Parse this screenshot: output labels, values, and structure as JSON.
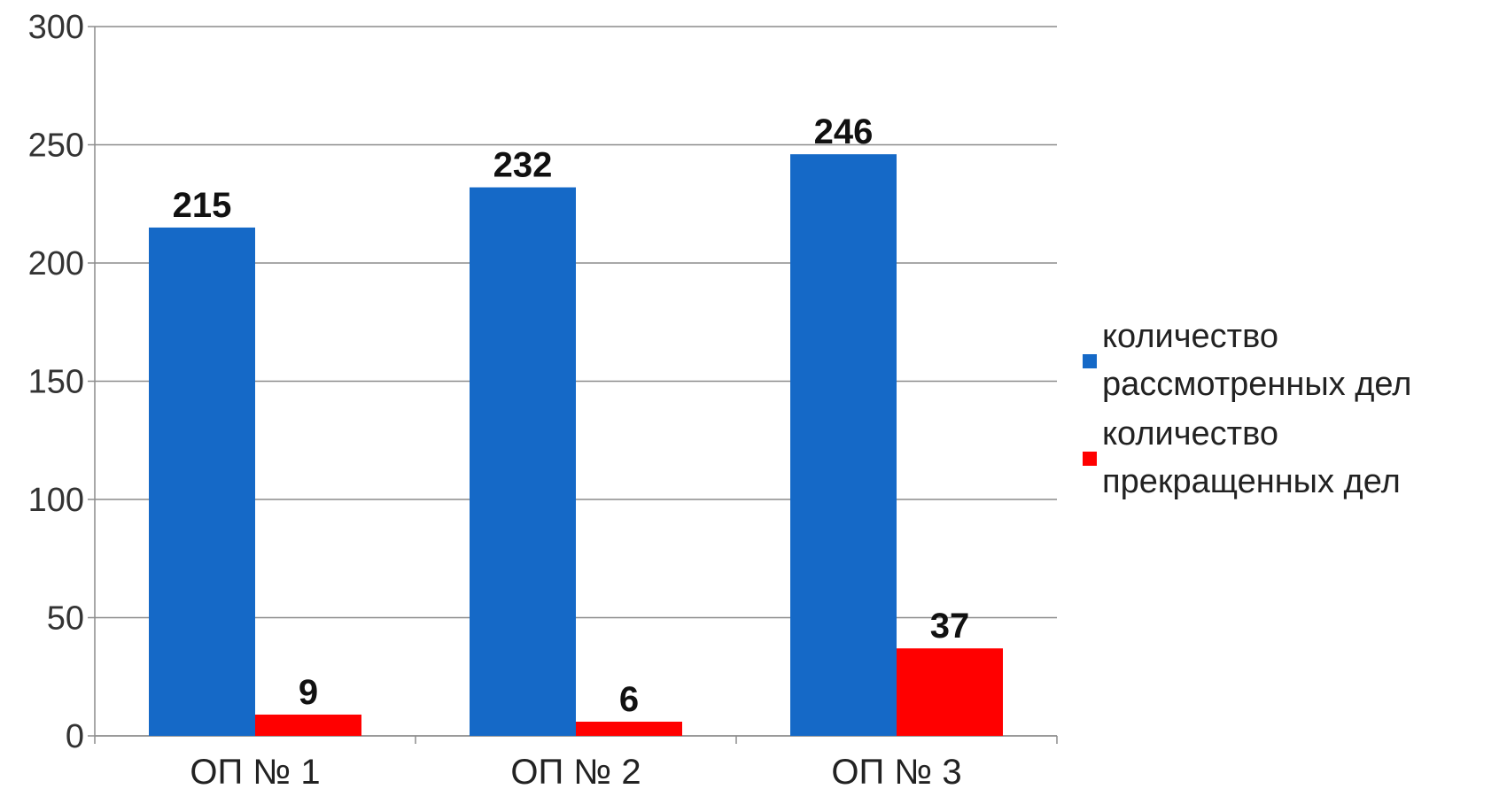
{
  "chart_data": {
    "type": "bar",
    "categories": [
      "ОП № 1",
      "ОП № 2",
      "ОП № 3"
    ],
    "series": [
      {
        "name": "количество рассмотренных дел",
        "legend_lines": [
          "количество",
          "рассмотренных дел"
        ],
        "values": [
          215,
          232,
          246
        ],
        "color": "#1569C7"
      },
      {
        "name": "количество прекращенных дел",
        "legend_lines": [
          "количество",
          "прекращенных дел"
        ],
        "values": [
          9,
          6,
          37
        ],
        "color": "#FF0000"
      }
    ],
    "ylim": [
      0,
      300
    ],
    "yticks": [
      0,
      50,
      100,
      150,
      200,
      250,
      300
    ],
    "grid": true,
    "legend": "right",
    "data_labels": true
  }
}
